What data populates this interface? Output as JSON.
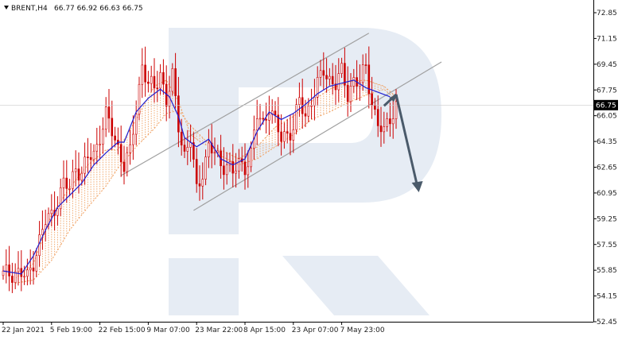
{
  "header": {
    "symbol": "BRENT,H4",
    "quote": "66.77 66.92 66.63 66.75"
  },
  "colors": {
    "background": "#ffffff",
    "candle": "#cc0000",
    "kijun": "#1f1fd1",
    "cloud": "#f0a060",
    "channel": "#a0a0a0",
    "forecast_arrow": "#4a5a6a",
    "price_tag": "#000000",
    "watermark": "#e6ecf4"
  },
  "chart_data": {
    "type": "candlestick",
    "title": "BRENT,H4",
    "ylim": [
      52.45,
      73.8
    ],
    "y_ticks": [
      "72.85",
      "71.15",
      "69.45",
      "67.75",
      "66.05",
      "64.35",
      "62.65",
      "60.95",
      "59.25",
      "57.55",
      "55.85",
      "54.15",
      "52.45"
    ],
    "x_ticks": [
      "22 Jan 2021",
      "5 Feb 19:00",
      "22 Feb 15:00",
      "9 Mar 07:00",
      "23 Mar 22:00",
      "8 Apr 15:00",
      "23 Apr 07:00",
      "7 May 23:00"
    ],
    "x_tick_index": [
      0,
      16,
      32,
      48,
      64,
      80,
      96,
      112
    ],
    "current_price": 66.75,
    "close_path": [
      {
        "i": 0,
        "v": 55.5
      },
      {
        "i": 4,
        "v": 55.8
      },
      {
        "i": 8,
        "v": 55.3
      },
      {
        "i": 10,
        "v": 56.5
      },
      {
        "i": 12,
        "v": 57.8
      },
      {
        "i": 14,
        "v": 59.0
      },
      {
        "i": 16,
        "v": 59.5
      },
      {
        "i": 18,
        "v": 60.5
      },
      {
        "i": 20,
        "v": 61.5
      },
      {
        "i": 22,
        "v": 61.2
      },
      {
        "i": 24,
        "v": 62.8
      },
      {
        "i": 26,
        "v": 62.2
      },
      {
        "i": 28,
        "v": 63.2
      },
      {
        "i": 30,
        "v": 63.5
      },
      {
        "i": 32,
        "v": 64.8
      },
      {
        "i": 34,
        "v": 66.0
      },
      {
        "i": 36,
        "v": 65.0
      },
      {
        "i": 38,
        "v": 64.0
      },
      {
        "i": 40,
        "v": 62.8
      },
      {
        "i": 42,
        "v": 63.5
      },
      {
        "i": 44,
        "v": 66.5
      },
      {
        "i": 46,
        "v": 69.5
      },
      {
        "i": 48,
        "v": 68.0
      },
      {
        "i": 50,
        "v": 67.8
      },
      {
        "i": 52,
        "v": 69.0
      },
      {
        "i": 54,
        "v": 67.0
      },
      {
        "i": 56,
        "v": 68.5
      },
      {
        "i": 58,
        "v": 65.5
      },
      {
        "i": 60,
        "v": 63.5
      },
      {
        "i": 62,
        "v": 64.5
      },
      {
        "i": 64,
        "v": 61.0
      },
      {
        "i": 66,
        "v": 62.5
      },
      {
        "i": 68,
        "v": 64.0
      },
      {
        "i": 70,
        "v": 63.5
      },
      {
        "i": 72,
        "v": 62.8
      },
      {
        "i": 74,
        "v": 63.0
      },
      {
        "i": 76,
        "v": 62.2
      },
      {
        "i": 78,
        "v": 62.8
      },
      {
        "i": 80,
        "v": 62.8
      },
      {
        "i": 82,
        "v": 63.5
      },
      {
        "i": 84,
        "v": 66.0
      },
      {
        "i": 86,
        "v": 65.5
      },
      {
        "i": 88,
        "v": 66.8
      },
      {
        "i": 90,
        "v": 65.5
      },
      {
        "i": 92,
        "v": 64.5
      },
      {
        "i": 94,
        "v": 65.0
      },
      {
        "i": 96,
        "v": 65.2
      },
      {
        "i": 98,
        "v": 67.0
      },
      {
        "i": 100,
        "v": 66.0
      },
      {
        "i": 102,
        "v": 67.2
      },
      {
        "i": 104,
        "v": 68.0
      },
      {
        "i": 106,
        "v": 69.0
      },
      {
        "i": 108,
        "v": 68.5
      },
      {
        "i": 110,
        "v": 68.2
      },
      {
        "i": 112,
        "v": 68.8
      },
      {
        "i": 114,
        "v": 67.5
      },
      {
        "i": 116,
        "v": 68.5
      },
      {
        "i": 118,
        "v": 68.2
      },
      {
        "i": 120,
        "v": 69.2
      },
      {
        "i": 122,
        "v": 67.0
      },
      {
        "i": 124,
        "v": 65.5
      },
      {
        "i": 126,
        "v": 64.8
      },
      {
        "i": 128,
        "v": 66.0
      },
      {
        "i": 130,
        "v": 66.8
      }
    ],
    "kijun_path": [
      {
        "i": 0,
        "v": 55.8
      },
      {
        "i": 6,
        "v": 55.6
      },
      {
        "i": 10,
        "v": 56.8
      },
      {
        "i": 14,
        "v": 58.5
      },
      {
        "i": 18,
        "v": 60.0
      },
      {
        "i": 22,
        "v": 60.8
      },
      {
        "i": 26,
        "v": 61.6
      },
      {
        "i": 30,
        "v": 62.8
      },
      {
        "i": 34,
        "v": 63.6
      },
      {
        "i": 38,
        "v": 64.3
      },
      {
        "i": 40,
        "v": 64.3
      },
      {
        "i": 44,
        "v": 66.3
      },
      {
        "i": 48,
        "v": 67.2
      },
      {
        "i": 52,
        "v": 67.8
      },
      {
        "i": 55,
        "v": 67.3
      },
      {
        "i": 58,
        "v": 66.0
      },
      {
        "i": 60,
        "v": 64.6
      },
      {
        "i": 62,
        "v": 64.3
      },
      {
        "i": 64,
        "v": 64.0
      },
      {
        "i": 68,
        "v": 64.5
      },
      {
        "i": 72,
        "v": 63.2
      },
      {
        "i": 76,
        "v": 62.8
      },
      {
        "i": 80,
        "v": 63.2
      },
      {
        "i": 84,
        "v": 65.0
      },
      {
        "i": 88,
        "v": 66.3
      },
      {
        "i": 92,
        "v": 65.8
      },
      {
        "i": 96,
        "v": 66.2
      },
      {
        "i": 100,
        "v": 66.8
      },
      {
        "i": 104,
        "v": 67.5
      },
      {
        "i": 108,
        "v": 68.0
      },
      {
        "i": 112,
        "v": 68.2
      },
      {
        "i": 116,
        "v": 68.4
      },
      {
        "i": 120,
        "v": 67.9
      },
      {
        "i": 124,
        "v": 67.6
      },
      {
        "i": 128,
        "v": 67.3
      }
    ],
    "cloud_a": [
      {
        "i": 4,
        "v": 55.3
      },
      {
        "i": 10,
        "v": 56.3
      },
      {
        "i": 16,
        "v": 59.5
      },
      {
        "i": 22,
        "v": 61.3
      },
      {
        "i": 28,
        "v": 62.8
      },
      {
        "i": 34,
        "v": 63.8
      },
      {
        "i": 38,
        "v": 63.8
      },
      {
        "i": 44,
        "v": 65.8
      },
      {
        "i": 50,
        "v": 68.0
      },
      {
        "i": 54,
        "v": 68.4
      },
      {
        "i": 58,
        "v": 67.0
      },
      {
        "i": 62,
        "v": 64.8
      },
      {
        "i": 66,
        "v": 64.2
      },
      {
        "i": 72,
        "v": 63.8
      },
      {
        "i": 78,
        "v": 63.2
      },
      {
        "i": 84,
        "v": 64.0
      },
      {
        "i": 90,
        "v": 65.3
      },
      {
        "i": 96,
        "v": 66.0
      },
      {
        "i": 102,
        "v": 67.0
      },
      {
        "i": 108,
        "v": 67.8
      },
      {
        "i": 114,
        "v": 68.3
      },
      {
        "i": 120,
        "v": 68.4
      },
      {
        "i": 126,
        "v": 68.0
      },
      {
        "i": 130,
        "v": 67.3
      }
    ],
    "cloud_b": [
      {
        "i": 4,
        "v": 55.0
      },
      {
        "i": 10,
        "v": 55.2
      },
      {
        "i": 16,
        "v": 56.5
      },
      {
        "i": 22,
        "v": 58.5
      },
      {
        "i": 28,
        "v": 60.0
      },
      {
        "i": 34,
        "v": 61.4
      },
      {
        "i": 38,
        "v": 62.6
      },
      {
        "i": 44,
        "v": 64.0
      },
      {
        "i": 50,
        "v": 65.2
      },
      {
        "i": 54,
        "v": 66.2
      },
      {
        "i": 58,
        "v": 66.4
      },
      {
        "i": 62,
        "v": 65.4
      },
      {
        "i": 66,
        "v": 64.6
      },
      {
        "i": 72,
        "v": 63.4
      },
      {
        "i": 78,
        "v": 62.8
      },
      {
        "i": 84,
        "v": 63.2
      },
      {
        "i": 90,
        "v": 64.0
      },
      {
        "i": 96,
        "v": 64.8
      },
      {
        "i": 102,
        "v": 65.8
      },
      {
        "i": 108,
        "v": 66.3
      },
      {
        "i": 114,
        "v": 66.9
      },
      {
        "i": 120,
        "v": 67.4
      },
      {
        "i": 126,
        "v": 67.8
      },
      {
        "i": 130,
        "v": 67.1
      }
    ],
    "channel": {
      "upper": [
        {
          "i": 39,
          "v": 62.1
        },
        {
          "i": 121,
          "v": 71.5
        }
      ],
      "lower": [
        {
          "i": 63,
          "v": 59.8
        },
        {
          "i": 145,
          "v": 69.6
        }
      ]
    },
    "forecast": {
      "start": {
        "i": 126,
        "v": 66.7
      },
      "peak": {
        "i": 130,
        "v": 67.45
      },
      "end": {
        "i": 137,
        "v": 61.1
      }
    }
  }
}
